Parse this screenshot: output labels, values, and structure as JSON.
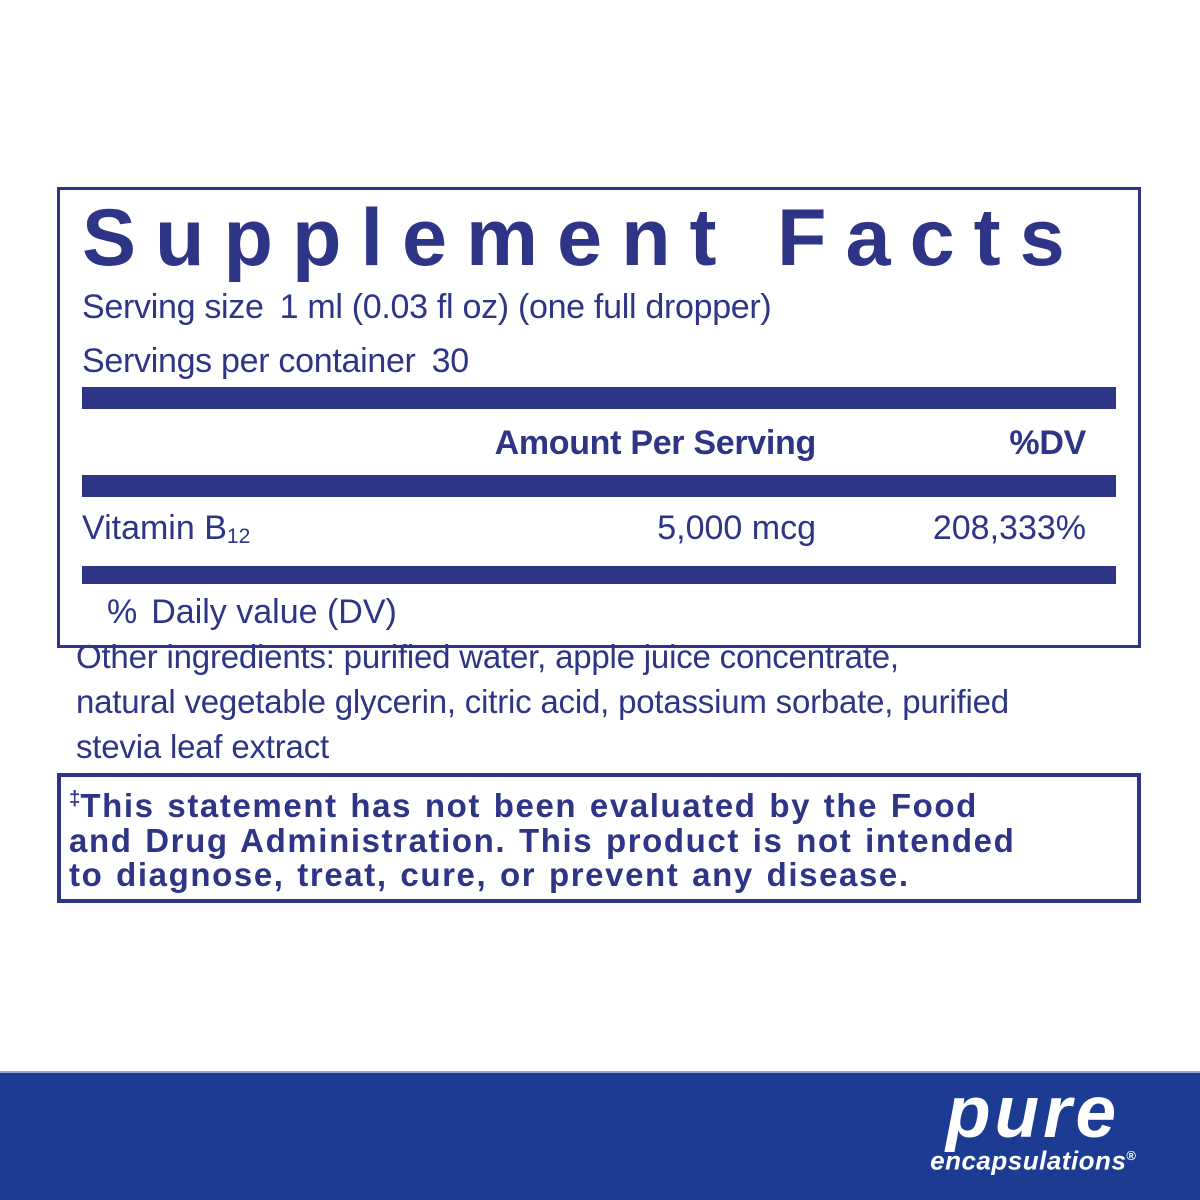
{
  "colors": {
    "navy": "#2e3486",
    "band_blue": "#1c3c94",
    "background": "#ffffff",
    "logo_white": "#ffffff"
  },
  "supplement_facts": {
    "title": "Supplement Facts",
    "serving_size_label": "Serving size",
    "serving_size_value": "1 ml (0.03 fl oz) (one full dropper)",
    "servings_per_container_label": "Servings per container",
    "servings_per_container_value": "30",
    "columns": {
      "amount_header": "Amount Per Serving",
      "dv_header": "%DV"
    },
    "rows": [
      {
        "name": "Vitamin B",
        "name_subscript": "12",
        "amount": "5,000 mcg",
        "daily_value": "208,333%"
      }
    ],
    "footnote_percent": "%",
    "footnote_text": "Daily value (DV)"
  },
  "other_ingredients": {
    "lines": [
      "Other ingredients: purified water, apple juice concentrate,",
      "natural vegetable glycerin, citric acid, potassium sorbate, purified",
      "stevia leaf extract"
    ]
  },
  "disclaimer": {
    "dagger": "‡",
    "lines": [
      "This statement has not been evaluated by the Food",
      "and Drug Administration. This product is not intended",
      "to diagnose, treat, cure, or prevent any disease."
    ]
  },
  "brand": {
    "name": "pure",
    "subname": "encapsulations",
    "registered_mark": "®"
  }
}
